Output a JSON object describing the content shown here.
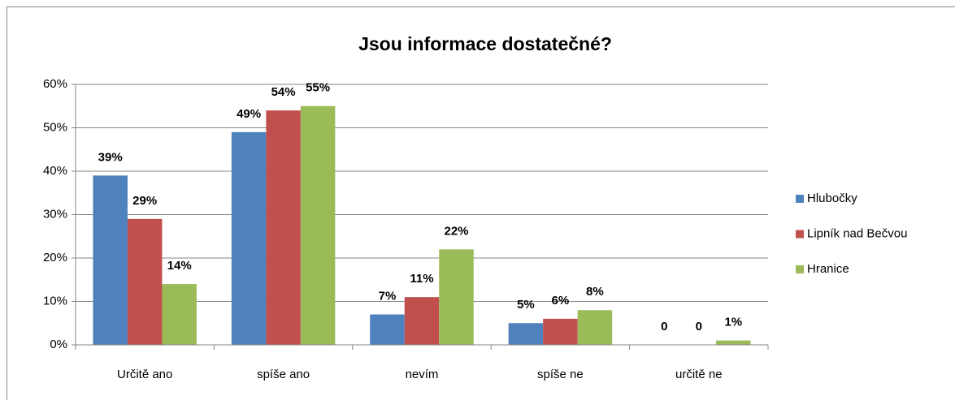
{
  "chart_data": {
    "type": "bar",
    "title": "Jsou informace dostatečné?",
    "categories": [
      "Určitě ano",
      "spíše ano",
      "nevím",
      "spíše ne",
      "určitě ne"
    ],
    "series": [
      {
        "name": "Hlubočky",
        "color": "#4f81bd",
        "values": [
          39,
          49,
          7,
          5,
          0
        ],
        "value_labels": [
          "39%",
          "49%",
          "7%",
          "5%",
          "0"
        ]
      },
      {
        "name": "Lipník nad Bečvou",
        "color": "#c0504d",
        "values": [
          29,
          54,
          11,
          6,
          0
        ],
        "value_labels": [
          "29%",
          "54%",
          "11%",
          "6%",
          "0"
        ]
      },
      {
        "name": "Hranice",
        "color": "#9bbb59",
        "values": [
          14,
          55,
          22,
          8,
          1
        ],
        "value_labels": [
          "14%",
          "55%",
          "22%",
          "8%",
          "1%"
        ]
      }
    ],
    "ylim": [
      0,
      60
    ],
    "yticks": [
      {
        "value": 0,
        "label": "0%"
      },
      {
        "value": 10,
        "label": "10%"
      },
      {
        "value": 20,
        "label": "20%"
      },
      {
        "value": 30,
        "label": "30%"
      },
      {
        "value": 40,
        "label": "40%"
      },
      {
        "value": 50,
        "label": "50%"
      },
      {
        "value": 60,
        "label": "60%"
      }
    ],
    "grid": true,
    "legend": "right"
  }
}
